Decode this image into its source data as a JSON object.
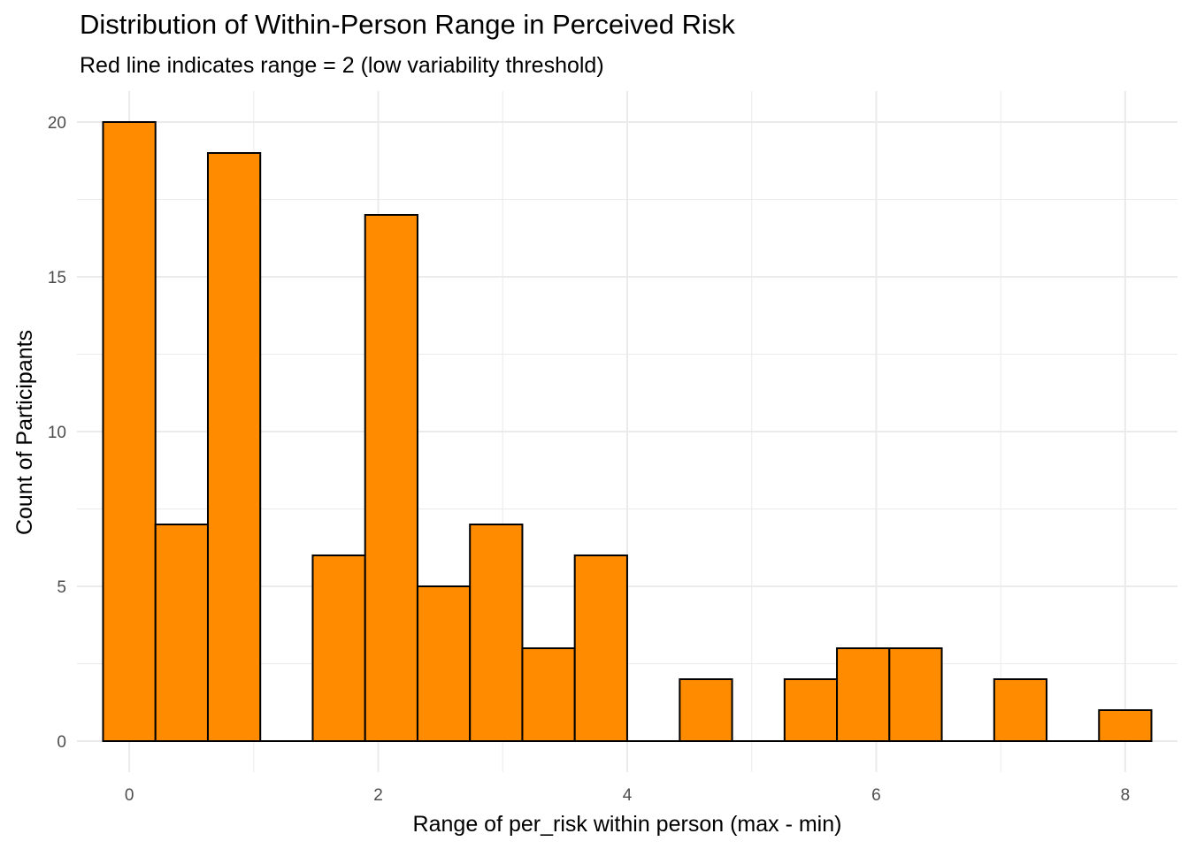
{
  "chart_data": {
    "type": "bar",
    "title": "Distribution of Within-Person Range in Perceived Risk",
    "subtitle": "Red line indicates range = 2 (low variability threshold)",
    "xlabel": "Range of per_risk within person (max - min)",
    "ylabel": "Count of Participants",
    "bin_width": 0.421,
    "bins": [
      {
        "x": 0.0,
        "count": 20
      },
      {
        "x": 0.421,
        "count": 7
      },
      {
        "x": 0.842,
        "count": 19
      },
      {
        "x": 1.263,
        "count": 0
      },
      {
        "x": 1.684,
        "count": 6
      },
      {
        "x": 2.105,
        "count": 17
      },
      {
        "x": 2.526,
        "count": 5
      },
      {
        "x": 2.947,
        "count": 7
      },
      {
        "x": 3.368,
        "count": 3
      },
      {
        "x": 3.789,
        "count": 6
      },
      {
        "x": 4.211,
        "count": 0
      },
      {
        "x": 4.632,
        "count": 2
      },
      {
        "x": 5.053,
        "count": 0
      },
      {
        "x": 5.474,
        "count": 2
      },
      {
        "x": 5.895,
        "count": 3
      },
      {
        "x": 6.316,
        "count": 3
      },
      {
        "x": 6.737,
        "count": 0
      },
      {
        "x": 7.158,
        "count": 2
      },
      {
        "x": 7.579,
        "count": 0
      },
      {
        "x": 8.0,
        "count": 1
      }
    ],
    "xlim": [
      -0.42,
      8.42
    ],
    "ylim": [
      -1,
      21
    ],
    "x_ticks": [
      0,
      2,
      4,
      6,
      8
    ],
    "y_ticks": [
      0,
      5,
      10,
      15,
      20
    ],
    "bar_fill": "#ff8c00",
    "bar_stroke": "#000000",
    "grid": true,
    "grid_color": "#ebebeb"
  }
}
